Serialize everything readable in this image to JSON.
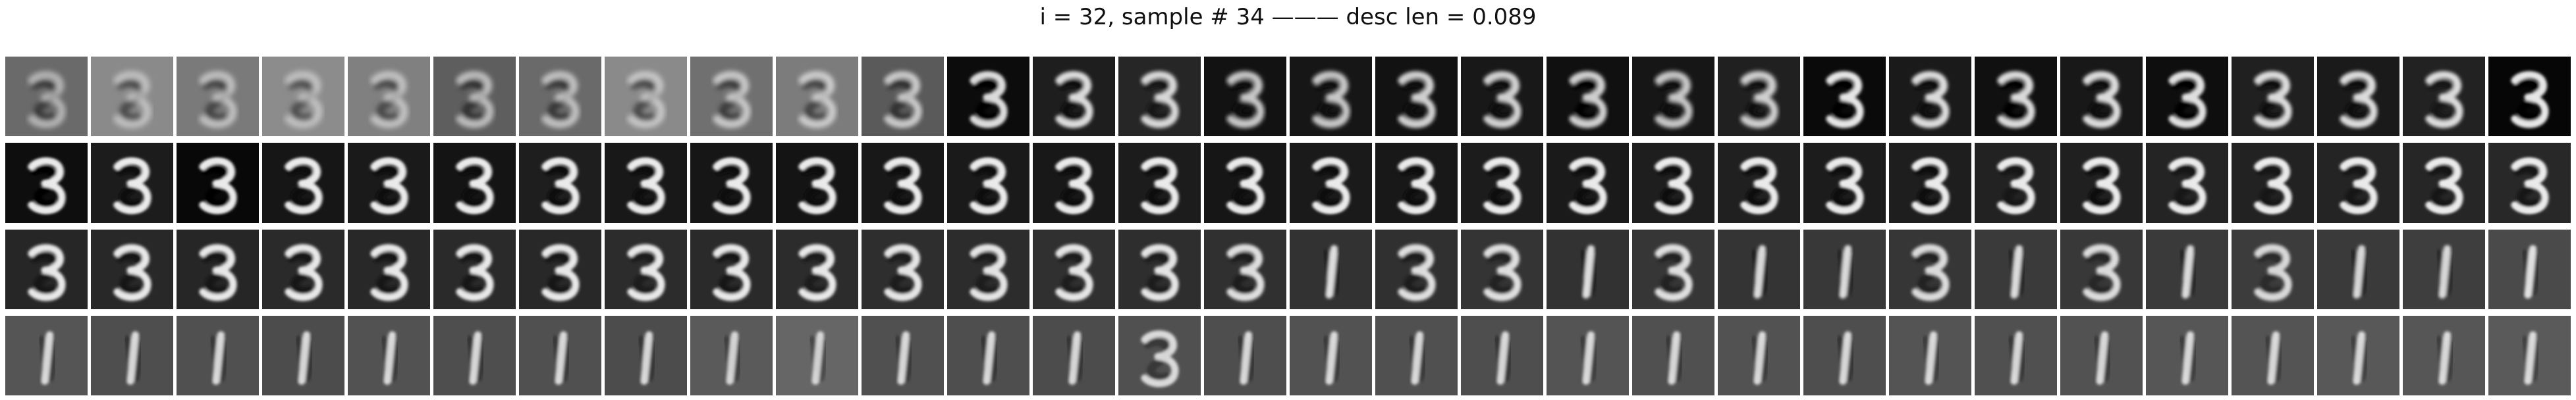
{
  "figure": {
    "title": "i = 32, sample # 34 ——— desc len = 0.089"
  },
  "grid": {
    "rows": 4,
    "columns": 30,
    "colormap": "grayscale",
    "stroke_color": "#f2f2f2"
  },
  "tiles": [
    {
      "digit": "3",
      "bg": "#6a6a6a",
      "ghost": "#3a3a3a",
      "blur": 3.2,
      "opacity": 0.55
    },
    {
      "digit": "3",
      "bg": "#8a8a8a",
      "ghost": "#4a4a4a",
      "blur": 3.4,
      "opacity": 0.55
    },
    {
      "digit": "3",
      "bg": "#7a7a7a",
      "ghost": "#444444",
      "blur": 3.2,
      "opacity": 0.6
    },
    {
      "digit": "3",
      "bg": "#8c8c8c",
      "ghost": "#4e4e4e",
      "blur": 3.4,
      "opacity": 0.55
    },
    {
      "digit": "3",
      "bg": "#808080",
      "ghost": "#484848",
      "blur": 3.2,
      "opacity": 0.6
    },
    {
      "digit": "3",
      "bg": "#5e5e5e",
      "ghost": "#333333",
      "blur": 3.0,
      "opacity": 0.65
    },
    {
      "digit": "3",
      "bg": "#6a6a6a",
      "ghost": "#383838",
      "blur": 3.0,
      "opacity": 0.65
    },
    {
      "digit": "3",
      "bg": "#8a8a8a",
      "ghost": "#4a4a4a",
      "blur": 3.2,
      "opacity": 0.6
    },
    {
      "digit": "3",
      "bg": "#707070",
      "ghost": "#3c3c3c",
      "blur": 3.0,
      "opacity": 0.7
    },
    {
      "digit": "3",
      "bg": "#7c7c7c",
      "ghost": "#444444",
      "blur": 3.0,
      "opacity": 0.7
    },
    {
      "digit": "3",
      "bg": "#5a5a5a",
      "ghost": "#303030",
      "blur": 2.8,
      "opacity": 0.75
    },
    {
      "digit": "3",
      "bg": "#0c0c0c",
      "ghost": "#000000",
      "blur": 2.0,
      "opacity": 0.9
    },
    {
      "digit": "3",
      "bg": "#1e1e1e",
      "ghost": "#101010",
      "blur": 2.2,
      "opacity": 0.9
    },
    {
      "digit": "3",
      "bg": "#262626",
      "ghost": "#141414",
      "blur": 2.4,
      "opacity": 0.88
    },
    {
      "digit": "3",
      "bg": "#121212",
      "ghost": "#080808",
      "blur": 2.6,
      "opacity": 0.82
    },
    {
      "digit": "3",
      "bg": "#161616",
      "ghost": "#0a0a0a",
      "blur": 2.6,
      "opacity": 0.82
    },
    {
      "digit": "3",
      "bg": "#121212",
      "ghost": "#080808",
      "blur": 2.4,
      "opacity": 0.85
    },
    {
      "digit": "3",
      "bg": "#181818",
      "ghost": "#0a0a0a",
      "blur": 2.4,
      "opacity": 0.85
    },
    {
      "digit": "3",
      "bg": "#101010",
      "ghost": "#060606",
      "blur": 2.4,
      "opacity": 0.85
    },
    {
      "digit": "3",
      "bg": "#161616",
      "ghost": "#0a0a0a",
      "blur": 2.6,
      "opacity": 0.82
    },
    {
      "digit": "3",
      "bg": "#202020",
      "ghost": "#101010",
      "blur": 2.6,
      "opacity": 0.85
    },
    {
      "digit": "3",
      "bg": "#0a0a0a",
      "ghost": "#000000",
      "blur": 2.0,
      "opacity": 0.95
    },
    {
      "digit": "3",
      "bg": "#1a1a1a",
      "ghost": "#0c0c0c",
      "blur": 2.2,
      "opacity": 0.9
    },
    {
      "digit": "3",
      "bg": "#101010",
      "ghost": "#060606",
      "blur": 2.2,
      "opacity": 0.9
    },
    {
      "digit": "3",
      "bg": "#181818",
      "ghost": "#0a0a0a",
      "blur": 2.2,
      "opacity": 0.9
    },
    {
      "digit": "3",
      "bg": "#0e0e0e",
      "ghost": "#000000",
      "blur": 2.0,
      "opacity": 0.92
    },
    {
      "digit": "3",
      "bg": "#202020",
      "ghost": "#101010",
      "blur": 2.2,
      "opacity": 0.9
    },
    {
      "digit": "3",
      "bg": "#1a1a1a",
      "ghost": "#0c0c0c",
      "blur": 2.2,
      "opacity": 0.9
    },
    {
      "digit": "3",
      "bg": "#222222",
      "ghost": "#121212",
      "blur": 2.2,
      "opacity": 0.9
    },
    {
      "digit": "3",
      "bg": "#060606",
      "ghost": "#000000",
      "blur": 1.8,
      "opacity": 0.95
    },
    {
      "digit": "3",
      "bg": "#0e0e0e",
      "ghost": "#000000",
      "blur": 1.6,
      "opacity": 0.97
    },
    {
      "digit": "3",
      "bg": "#1c1c1c",
      "ghost": "#0c0c0c",
      "blur": 1.6,
      "opacity": 0.97
    },
    {
      "digit": "3",
      "bg": "#080808",
      "ghost": "#000000",
      "blur": 1.6,
      "opacity": 0.97
    },
    {
      "digit": "3",
      "bg": "#161616",
      "ghost": "#0a0a0a",
      "blur": 1.6,
      "opacity": 0.97
    },
    {
      "digit": "3",
      "bg": "#1a1a1a",
      "ghost": "#0c0c0c",
      "blur": 1.6,
      "opacity": 0.97
    },
    {
      "digit": "3",
      "bg": "#141414",
      "ghost": "#080808",
      "blur": 1.6,
      "opacity": 0.97
    },
    {
      "digit": "3",
      "bg": "#1e1e1e",
      "ghost": "#0e0e0e",
      "blur": 1.6,
      "opacity": 0.97
    },
    {
      "digit": "3",
      "bg": "#181818",
      "ghost": "#0a0a0a",
      "blur": 1.6,
      "opacity": 0.97
    },
    {
      "digit": "3",
      "bg": "#161616",
      "ghost": "#0a0a0a",
      "blur": 1.6,
      "opacity": 0.97
    },
    {
      "digit": "3",
      "bg": "#141414",
      "ghost": "#080808",
      "blur": 1.6,
      "opacity": 0.97
    },
    {
      "digit": "3",
      "bg": "#181818",
      "ghost": "#0a0a0a",
      "blur": 1.6,
      "opacity": 0.97
    },
    {
      "digit": "3",
      "bg": "#1a1a1a",
      "ghost": "#0c0c0c",
      "blur": 1.6,
      "opacity": 0.97
    },
    {
      "digit": "3",
      "bg": "#181818",
      "ghost": "#0a0a0a",
      "blur": 1.6,
      "opacity": 0.97
    },
    {
      "digit": "3",
      "bg": "#1c1c1c",
      "ghost": "#0c0c0c",
      "blur": 1.6,
      "opacity": 0.97
    },
    {
      "digit": "3",
      "bg": "#161616",
      "ghost": "#0a0a0a",
      "blur": 1.6,
      "opacity": 0.97
    },
    {
      "digit": "3",
      "bg": "#1a1a1a",
      "ghost": "#0c0c0c",
      "blur": 1.6,
      "opacity": 0.97
    },
    {
      "digit": "3",
      "bg": "#181818",
      "ghost": "#0a0a0a",
      "blur": 1.6,
      "opacity": 0.97
    },
    {
      "digit": "3",
      "bg": "#1c1c1c",
      "ghost": "#0c0c0c",
      "blur": 1.6,
      "opacity": 0.97
    },
    {
      "digit": "3",
      "bg": "#1a1a1a",
      "ghost": "#0c0c0c",
      "blur": 1.6,
      "opacity": 0.97
    },
    {
      "digit": "3",
      "bg": "#1e1e1e",
      "ghost": "#0e0e0e",
      "blur": 1.6,
      "opacity": 0.97
    },
    {
      "digit": "3",
      "bg": "#202020",
      "ghost": "#101010",
      "blur": 1.6,
      "opacity": 0.97
    },
    {
      "digit": "3",
      "bg": "#1c1c1c",
      "ghost": "#0c0c0c",
      "blur": 1.6,
      "opacity": 0.97
    },
    {
      "digit": "3",
      "bg": "#1e1e1e",
      "ghost": "#0e0e0e",
      "blur": 1.6,
      "opacity": 0.97
    },
    {
      "digit": "3",
      "bg": "#222222",
      "ghost": "#121212",
      "blur": 1.6,
      "opacity": 0.97
    },
    {
      "digit": "3",
      "bg": "#202020",
      "ghost": "#101010",
      "blur": 1.6,
      "opacity": 0.97
    },
    {
      "digit": "3",
      "bg": "#242424",
      "ghost": "#141414",
      "blur": 1.6,
      "opacity": 0.97
    },
    {
      "digit": "3",
      "bg": "#222222",
      "ghost": "#121212",
      "blur": 1.6,
      "opacity": 0.97
    },
    {
      "digit": "3",
      "bg": "#242424",
      "ghost": "#141414",
      "blur": 1.6,
      "opacity": 0.97
    },
    {
      "digit": "3",
      "bg": "#262626",
      "ghost": "#161616",
      "blur": 1.6,
      "opacity": 0.97
    },
    {
      "digit": "3",
      "bg": "#282828",
      "ghost": "#181818",
      "blur": 1.6,
      "opacity": 0.97
    },
    {
      "digit": "3",
      "bg": "#262626",
      "ghost": "#141414",
      "blur": 1.8,
      "opacity": 0.95
    },
    {
      "digit": "3",
      "bg": "#282828",
      "ghost": "#161616",
      "blur": 1.8,
      "opacity": 0.95
    },
    {
      "digit": "3",
      "bg": "#262626",
      "ghost": "#141414",
      "blur": 1.8,
      "opacity": 0.95
    },
    {
      "digit": "3",
      "bg": "#2a2a2a",
      "ghost": "#181818",
      "blur": 1.8,
      "opacity": 0.95
    },
    {
      "digit": "3",
      "bg": "#282828",
      "ghost": "#161616",
      "blur": 1.8,
      "opacity": 0.95
    },
    {
      "digit": "3",
      "bg": "#2a2a2a",
      "ghost": "#181818",
      "blur": 1.8,
      "opacity": 0.95
    },
    {
      "digit": "3",
      "bg": "#282828",
      "ghost": "#161616",
      "blur": 1.8,
      "opacity": 0.95
    },
    {
      "digit": "3",
      "bg": "#2c2c2c",
      "ghost": "#1a1a1a",
      "blur": 1.8,
      "opacity": 0.95
    },
    {
      "digit": "3",
      "bg": "#2a2a2a",
      "ghost": "#181818",
      "blur": 1.8,
      "opacity": 0.95
    },
    {
      "digit": "3",
      "bg": "#2c2c2c",
      "ghost": "#1a1a1a",
      "blur": 1.8,
      "opacity": 0.95
    },
    {
      "digit": "3",
      "bg": "#2e2e2e",
      "ghost": "#1c1c1c",
      "blur": 1.8,
      "opacity": 0.93
    },
    {
      "digit": "3",
      "bg": "#2c2c2c",
      "ghost": "#1a1a1a",
      "blur": 1.8,
      "opacity": 0.93
    },
    {
      "digit": "3",
      "bg": "#303030",
      "ghost": "#1e1e1e",
      "blur": 1.8,
      "opacity": 0.93
    },
    {
      "digit": "3",
      "bg": "#2e2e2e",
      "ghost": "#1c1c1c",
      "blur": 1.8,
      "opacity": 0.93
    },
    {
      "digit": "3",
      "bg": "#303030",
      "ghost": "#1e1e1e",
      "blur": 1.9,
      "opacity": 0.9
    },
    {
      "digit": "1",
      "bg": "#323232",
      "ghost": "#202020",
      "blur": 1.9,
      "opacity": 0.9
    },
    {
      "digit": "3",
      "bg": "#303030",
      "ghost": "#1e1e1e",
      "blur": 1.9,
      "opacity": 0.9
    },
    {
      "digit": "3",
      "bg": "#343434",
      "ghost": "#222222",
      "blur": 1.9,
      "opacity": 0.9
    },
    {
      "digit": "1",
      "bg": "#323232",
      "ghost": "#202020",
      "blur": 1.9,
      "opacity": 0.9
    },
    {
      "digit": "3",
      "bg": "#363636",
      "ghost": "#242424",
      "blur": 1.9,
      "opacity": 0.9
    },
    {
      "digit": "1",
      "bg": "#343434",
      "ghost": "#222222",
      "blur": 1.9,
      "opacity": 0.88
    },
    {
      "digit": "1",
      "bg": "#383838",
      "ghost": "#262626",
      "blur": 1.9,
      "opacity": 0.88
    },
    {
      "digit": "3",
      "bg": "#363636",
      "ghost": "#242424",
      "blur": 1.9,
      "opacity": 0.88
    },
    {
      "digit": "1",
      "bg": "#3a3a3a",
      "ghost": "#282828",
      "blur": 1.9,
      "opacity": 0.88
    },
    {
      "digit": "3",
      "bg": "#383838",
      "ghost": "#262626",
      "blur": 1.9,
      "opacity": 0.88
    },
    {
      "digit": "1",
      "bg": "#3a3a3a",
      "ghost": "#282828",
      "blur": 1.9,
      "opacity": 0.88
    },
    {
      "digit": "3",
      "bg": "#3c3c3c",
      "ghost": "#2a2a2a",
      "blur": 1.9,
      "opacity": 0.86
    },
    {
      "digit": "1",
      "bg": "#3a3a3a",
      "ghost": "#282828",
      "blur": 1.9,
      "opacity": 0.86
    },
    {
      "digit": "1",
      "bg": "#3e3e3e",
      "ghost": "#2c2c2c",
      "blur": 1.9,
      "opacity": 0.86
    },
    {
      "digit": "1",
      "bg": "#4a4a4a",
      "ghost": "#343434",
      "blur": 1.8,
      "opacity": 0.9
    },
    {
      "digit": "1",
      "bg": "#555555",
      "ghost": "#3a3a3a",
      "blur": 1.8,
      "opacity": 0.85
    },
    {
      "digit": "1",
      "bg": "#4e4e4e",
      "ghost": "#363636",
      "blur": 1.8,
      "opacity": 0.85
    },
    {
      "digit": "1",
      "bg": "#505050",
      "ghost": "#383838",
      "blur": 1.8,
      "opacity": 0.85
    },
    {
      "digit": "1",
      "bg": "#4c4c4c",
      "ghost": "#343434",
      "blur": 1.8,
      "opacity": 0.85
    },
    {
      "digit": "1",
      "bg": "#525252",
      "ghost": "#3a3a3a",
      "blur": 1.8,
      "opacity": 0.85
    },
    {
      "digit": "1",
      "bg": "#4e4e4e",
      "ghost": "#363636",
      "blur": 1.8,
      "opacity": 0.85
    },
    {
      "digit": "1",
      "bg": "#505050",
      "ghost": "#383838",
      "blur": 1.8,
      "opacity": 0.85
    },
    {
      "digit": "1",
      "bg": "#4c4c4c",
      "ghost": "#343434",
      "blur": 1.8,
      "opacity": 0.85
    },
    {
      "digit": "1",
      "bg": "#5a5a5a",
      "ghost": "#404040",
      "blur": 1.8,
      "opacity": 0.82
    },
    {
      "digit": "1",
      "bg": "#666666",
      "ghost": "#484848",
      "blur": 1.8,
      "opacity": 0.8
    },
    {
      "digit": "1",
      "bg": "#505050",
      "ghost": "#383838",
      "blur": 1.8,
      "opacity": 0.85
    },
    {
      "digit": "1",
      "bg": "#4e4e4e",
      "ghost": "#363636",
      "blur": 1.8,
      "opacity": 0.85
    },
    {
      "digit": "1",
      "bg": "#4c4c4c",
      "ghost": "#343434",
      "blur": 1.8,
      "opacity": 0.85
    },
    {
      "digit": "3",
      "bg": "#505050",
      "ghost": "#383838",
      "blur": 1.8,
      "opacity": 0.85
    },
    {
      "digit": "1",
      "bg": "#4e4e4e",
      "ghost": "#363636",
      "blur": 1.8,
      "opacity": 0.85
    },
    {
      "digit": "1",
      "bg": "#525252",
      "ghost": "#3a3a3a",
      "blur": 1.8,
      "opacity": 0.85
    },
    {
      "digit": "1",
      "bg": "#505050",
      "ghost": "#383838",
      "blur": 1.8,
      "opacity": 0.85
    },
    {
      "digit": "1",
      "bg": "#4e4e4e",
      "ghost": "#363636",
      "blur": 1.8,
      "opacity": 0.85
    },
    {
      "digit": "1",
      "bg": "#545454",
      "ghost": "#3c3c3c",
      "blur": 1.8,
      "opacity": 0.85
    },
    {
      "digit": "1",
      "bg": "#505050",
      "ghost": "#383838",
      "blur": 1.8,
      "opacity": 0.85
    },
    {
      "digit": "1",
      "bg": "#525252",
      "ghost": "#3a3a3a",
      "blur": 1.8,
      "opacity": 0.85
    },
    {
      "digit": "1",
      "bg": "#4e4e4e",
      "ghost": "#363636",
      "blur": 1.8,
      "opacity": 0.85
    },
    {
      "digit": "1",
      "bg": "#545454",
      "ghost": "#3c3c3c",
      "blur": 1.8,
      "opacity": 0.85
    },
    {
      "digit": "1",
      "bg": "#505050",
      "ghost": "#383838",
      "blur": 1.8,
      "opacity": 0.85
    },
    {
      "digit": "1",
      "bg": "#525252",
      "ghost": "#3a3a3a",
      "blur": 1.8,
      "opacity": 0.85
    },
    {
      "digit": "1",
      "bg": "#565656",
      "ghost": "#3e3e3e",
      "blur": 1.8,
      "opacity": 0.85
    },
    {
      "digit": "1",
      "bg": "#545454",
      "ghost": "#3c3c3c",
      "blur": 1.8,
      "opacity": 0.85
    },
    {
      "digit": "1",
      "bg": "#585858",
      "ghost": "#404040",
      "blur": 1.8,
      "opacity": 0.85
    },
    {
      "digit": "1",
      "bg": "#565656",
      "ghost": "#3e3e3e",
      "blur": 1.8,
      "opacity": 0.85
    },
    {
      "digit": "1",
      "bg": "#5a5a5a",
      "ghost": "#424242",
      "blur": 1.8,
      "opacity": 0.85
    }
  ]
}
